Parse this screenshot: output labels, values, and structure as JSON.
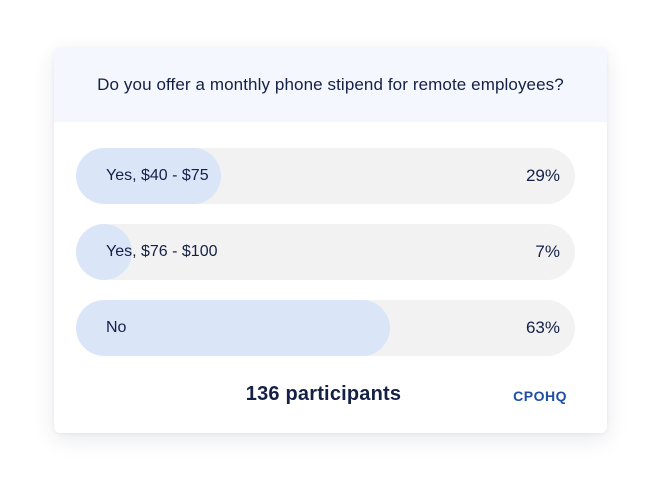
{
  "poll": {
    "question": "Do you offer a monthly phone stipend for remote employees?",
    "options": [
      {
        "label": "Yes, $40 - $75",
        "percent_text": "29%",
        "percent": 29
      },
      {
        "label": "Yes, $76 - $100",
        "percent_text": "7%",
        "percent": 7
      },
      {
        "label": "No",
        "percent_text": "63%",
        "percent": 63
      }
    ],
    "participants": "136 participants",
    "brand": "CPOHQ"
  },
  "colors": {
    "header_bg": "#f4f7fd",
    "track": "#f2f2f3",
    "fill": "#dae5f8",
    "text": "#142046",
    "brand": "#1e4ea8"
  }
}
